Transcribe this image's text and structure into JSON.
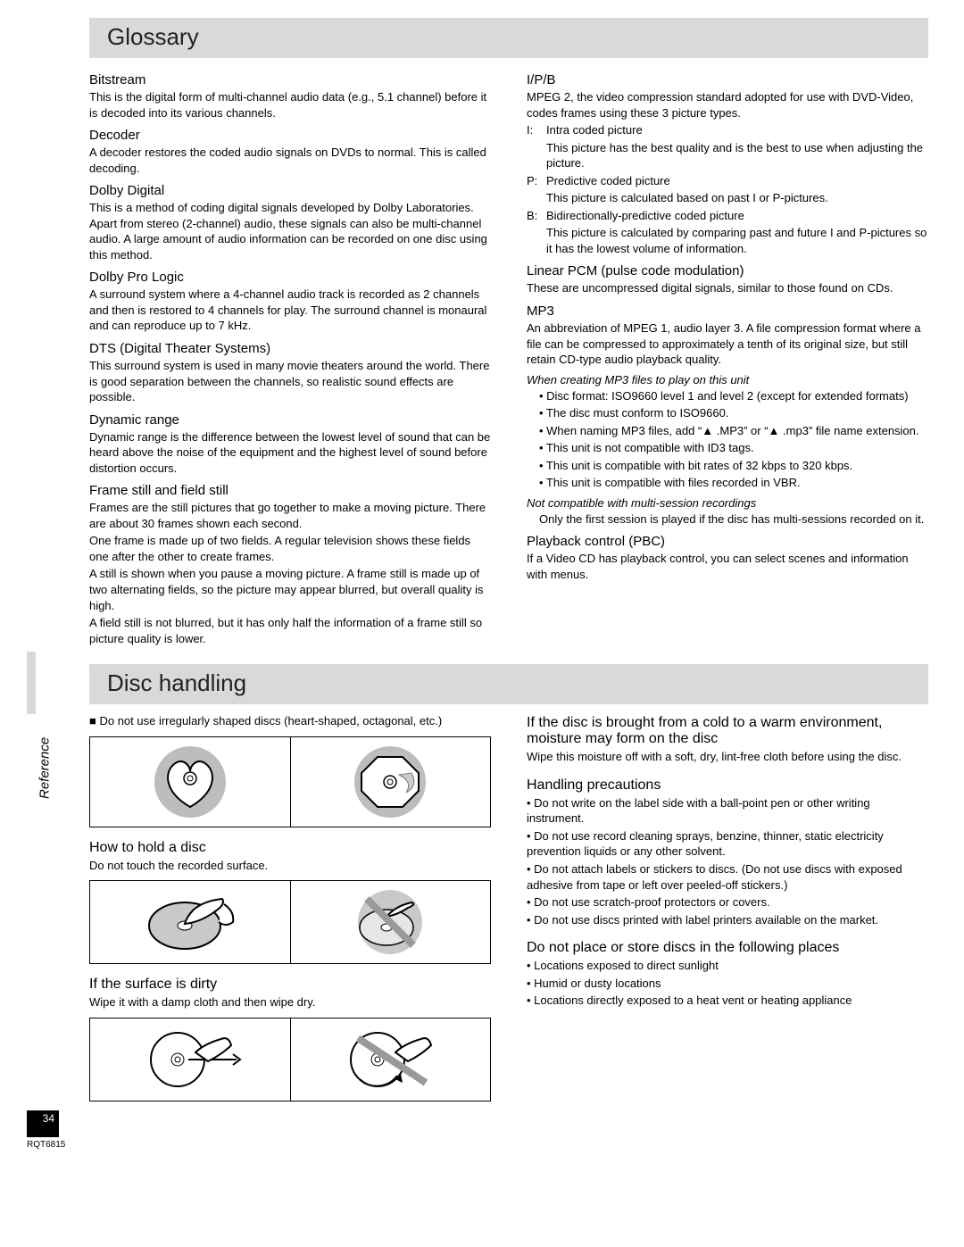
{
  "glossary": {
    "title": "Glossary",
    "left": [
      {
        "term": "Bitstream",
        "paras": [
          "This is the digital form of multi-channel audio data (e.g., 5.1 channel) before it is decoded into its various channels."
        ]
      },
      {
        "term": "Decoder",
        "paras": [
          "A decoder restores the coded audio signals on DVDs to normal. This is called decoding."
        ]
      },
      {
        "term": "Dolby Digital",
        "paras": [
          "This is a method of coding digital signals developed by Dolby Laboratories. Apart from stereo (2-channel) audio, these signals can also be multi-channel audio. A large amount of audio information can be recorded on one disc using this method."
        ]
      },
      {
        "term": "Dolby Pro Logic",
        "paras": [
          "A surround system where a 4-channel audio track is recorded as 2 channels and then is restored to 4 channels for play. The surround channel is monaural and can reproduce up to 7 kHz."
        ]
      },
      {
        "term": "DTS (Digital Theater Systems)",
        "paras": [
          "This surround system is used in many movie theaters around the world. There is good separation between the channels, so realistic sound effects are possible."
        ]
      },
      {
        "term": "Dynamic range",
        "paras": [
          "Dynamic range is the difference between the lowest level of sound that can be heard above the noise of the equipment and the highest level of sound before distortion occurs."
        ]
      },
      {
        "term": "Frame still and field still",
        "paras": [
          "Frames are the still pictures that go together to make a moving picture. There are about 30 frames shown each second.",
          "One frame is made up of two fields. A regular television shows these fields one after the other to create frames.",
          "A still is shown when you pause a moving picture. A frame still is made up of two alternating fields, so the picture may appear blurred, but overall quality is high.",
          "A field still is not blurred, but it has only half the information of a frame still so picture quality is lower."
        ]
      }
    ],
    "right": [
      {
        "term": "I/P/B",
        "intro": [
          "MPEG 2, the video compression standard adopted for use with DVD-Video, codes frames using these 3 picture types."
        ],
        "sub": [
          {
            "label": "I:",
            "lines": [
              "Intra coded picture",
              "This picture has the best quality and is the best to use when adjusting the picture."
            ]
          },
          {
            "label": "P:",
            "lines": [
              "Predictive coded picture",
              "This picture is calculated based on past I or P-pictures."
            ]
          },
          {
            "label": "B:",
            "lines": [
              "Bidirectionally-predictive coded picture",
              "This picture is calculated by comparing past and future I and P-pictures so it has the lowest volume of information."
            ]
          }
        ]
      },
      {
        "term": "Linear PCM (pulse code modulation)",
        "paras": [
          "These are uncompressed digital signals, similar to those found on CDs."
        ]
      },
      {
        "term": "MP3",
        "paras": [
          "An abbreviation of MPEG 1, audio layer 3. A file compression format where a file can be compressed to approximately a tenth of its original size, but still retain CD-type audio playback quality."
        ],
        "subheadItalic": "When creating MP3 files to play on this unit",
        "subBody": [
          "Disc format: ISO9660 level 1 and level 2 (except for extended formats)",
          "The disc must conform to ISO9660.",
          "When naming MP3 files, add “▲ .MP3” or “▲ .mp3” file name extension.",
          "This unit is not compatible with ID3 tags.",
          "This unit is compatible with bit rates of 32 kbps to 320 kbps.",
          "This unit is compatible with files recorded in VBR."
        ],
        "subheadItalic2": "Not compatible with multi-session recordings",
        "subBody2": [
          "Only the first session is played if the disc has multi-sessions recorded on it."
        ]
      },
      {
        "term": "Playback control (PBC)",
        "paras": [
          "If a Video CD has playback control, you can select scenes and information with menus."
        ]
      }
    ]
  },
  "disc": {
    "title": "Disc handling",
    "leftIntro": "■ Do not use irregularly shaped discs (heart-shaped, octagonal, etc.)",
    "h_hold": "How to hold a disc",
    "p_hold": "Do not touch the recorded surface.",
    "h_dirty": "If the surface is dirty",
    "p_dirty": "Wipe it with a damp cloth and then wipe dry.",
    "r_condense_h": "If the disc is brought from a cold to a warm environment, moisture may form on the disc",
    "r_condense_p": "Wipe this moisture off with a soft, dry, lint-free cloth before using the disc.",
    "h_precautions": "Handling precautions",
    "precautions": [
      "Do not write on the label side with a ball-point pen or other writing instrument.",
      "Do not use record cleaning sprays, benzine, thinner, static electricity prevention liquids or any other solvent.",
      "Do not attach labels or stickers to discs. (Do not use discs with exposed adhesive from tape or left over peeled-off stickers.)",
      "Do not use scratch-proof protectors or covers.",
      "Do not use discs printed with label printers available on the market."
    ],
    "h_store": "Do not place or store discs in the following places",
    "store": [
      "Locations exposed to direct sunlight",
      "Humid or dusty locations",
      "Locations directly exposed to a heat vent or heating appliance"
    ]
  },
  "sideTab": "Reference",
  "pageNum": "34",
  "pageSub": "RQT6815"
}
